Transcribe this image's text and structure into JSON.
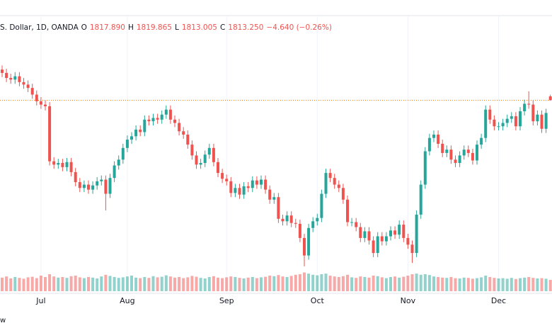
{
  "chart_data": {
    "type": "candlestick",
    "header": {
      "symbol": "S. Dollar, 1D, OANDA",
      "open_key": "O",
      "open": "1817.890",
      "high_key": "H",
      "high": "1819.865",
      "low_key": "L",
      "low": "1813.005",
      "close_key": "C",
      "close": "1813.250",
      "change": "−4.640 (−0.26%)"
    },
    "footer": "w",
    "up_color": "#26a69a",
    "down_color": "#ef5350",
    "price_line_color": "#f57c00",
    "ylim": [
      1602,
      1891
    ],
    "volume_lim": [
      0,
      100
    ],
    "xlim": [
      -0.5,
      127.5
    ],
    "xticks": [
      {
        "value": 9,
        "label": "Jul"
      },
      {
        "value": 29,
        "label": "Aug"
      },
      {
        "value": 52,
        "label": "Sep"
      },
      {
        "value": 73,
        "label": "Oct"
      },
      {
        "value": 94,
        "label": "Nov"
      },
      {
        "value": 115,
        "label": "Dec"
      }
    ],
    "open": [
      1850,
      1846,
      1840,
      1838,
      1842,
      1835,
      1832,
      1828,
      1820,
      1812,
      1808,
      1806,
      1740,
      1736,
      1738,
      1733,
      1739,
      1727,
      1715,
      1708,
      1712,
      1706,
      1711,
      1716,
      1718,
      1701,
      1720,
      1735,
      1742,
      1756,
      1766,
      1770,
      1778,
      1775,
      1790,
      1788,
      1792,
      1790,
      1796,
      1802,
      1790,
      1786,
      1776,
      1772,
      1760,
      1747,
      1736,
      1738,
      1748,
      1756,
      1739,
      1726,
      1719,
      1716,
      1702,
      1708,
      1700,
      1710,
      1708,
      1717,
      1712,
      1718,
      1706,
      1694,
      1697,
      1671,
      1668,
      1675,
      1666,
      1665,
      1648,
      1627,
      1660,
      1668,
      1672,
      1701,
      1726,
      1720,
      1712,
      1708,
      1694,
      1667,
      1667,
      1661,
      1648,
      1656,
      1645,
      1630,
      1650,
      1644,
      1650,
      1657,
      1652,
      1664,
      1648,
      1640,
      1630,
      1676,
      1712,
      1752,
      1768,
      1772,
      1761,
      1750,
      1754,
      1742,
      1738,
      1747,
      1754,
      1750,
      1741,
      1760,
      1768,
      1802,
      1790,
      1782,
      1782,
      1786,
      1791,
      1794,
      1782,
      1800,
      1809,
      1808,
      1788,
      1796,
      1779,
      1817.89
    ],
    "high": [
      1855,
      1851,
      1845,
      1847,
      1847,
      1840,
      1837,
      1833,
      1825,
      1817,
      1813,
      1811,
      1745,
      1743,
      1743,
      1744,
      1744,
      1732,
      1720,
      1717,
      1717,
      1716,
      1721,
      1723,
      1723,
      1725,
      1740,
      1747,
      1761,
      1771,
      1775,
      1783,
      1783,
      1795,
      1795,
      1797,
      1797,
      1801,
      1807,
      1807,
      1795,
      1791,
      1781,
      1777,
      1765,
      1752,
      1743,
      1753,
      1761,
      1761,
      1744,
      1731,
      1724,
      1721,
      1713,
      1713,
      1715,
      1715,
      1722,
      1722,
      1723,
      1723,
      1711,
      1702,
      1702,
      1676,
      1680,
      1680,
      1671,
      1670,
      1653,
      1665,
      1673,
      1677,
      1706,
      1731,
      1731,
      1725,
      1717,
      1713,
      1699,
      1672,
      1672,
      1666,
      1661,
      1661,
      1650,
      1655,
      1655,
      1655,
      1662,
      1662,
      1669,
      1669,
      1653,
      1645,
      1681,
      1717,
      1757,
      1773,
      1777,
      1777,
      1766,
      1759,
      1759,
      1747,
      1752,
      1759,
      1759,
      1755,
      1765,
      1773,
      1807,
      1807,
      1795,
      1787,
      1791,
      1796,
      1799,
      1799,
      1805,
      1814,
      1824,
      1813,
      1801,
      1801,
      1803,
      1819.865
    ],
    "low": [
      1841,
      1835,
      1833,
      1833,
      1830,
      1827,
      1823,
      1815,
      1807,
      1803,
      1801,
      1735,
      1731,
      1731,
      1728,
      1728,
      1722,
      1710,
      1703,
      1703,
      1701,
      1701,
      1706,
      1711,
      1681,
      1696,
      1715,
      1730,
      1737,
      1751,
      1761,
      1765,
      1770,
      1770,
      1783,
      1783,
      1785,
      1785,
      1791,
      1785,
      1781,
      1771,
      1767,
      1755,
      1742,
      1731,
      1731,
      1733,
      1743,
      1734,
      1721,
      1714,
      1711,
      1697,
      1697,
      1695,
      1695,
      1703,
      1703,
      1707,
      1707,
      1701,
      1689,
      1689,
      1666,
      1663,
      1663,
      1661,
      1660,
      1643,
      1614,
      1622,
      1655,
      1663,
      1667,
      1696,
      1715,
      1707,
      1703,
      1689,
      1662,
      1662,
      1656,
      1643,
      1643,
      1640,
      1625,
      1625,
      1639,
      1639,
      1645,
      1647,
      1647,
      1643,
      1635,
      1618,
      1625,
      1671,
      1707,
      1747,
      1763,
      1756,
      1745,
      1745,
      1737,
      1733,
      1733,
      1742,
      1745,
      1736,
      1736,
      1755,
      1763,
      1785,
      1777,
      1777,
      1777,
      1781,
      1786,
      1777,
      1777,
      1795,
      1803,
      1783,
      1783,
      1774,
      1774,
      1813.005
    ],
    "close": [
      1846,
      1840,
      1838,
      1842,
      1835,
      1832,
      1828,
      1820,
      1812,
      1808,
      1806,
      1740,
      1736,
      1738,
      1733,
      1739,
      1727,
      1715,
      1708,
      1712,
      1706,
      1711,
      1716,
      1718,
      1701,
      1720,
      1735,
      1742,
      1756,
      1766,
      1770,
      1778,
      1775,
      1790,
      1788,
      1792,
      1790,
      1796,
      1802,
      1790,
      1786,
      1776,
      1772,
      1760,
      1747,
      1736,
      1738,
      1748,
      1756,
      1739,
      1726,
      1719,
      1716,
      1702,
      1708,
      1700,
      1710,
      1708,
      1717,
      1712,
      1718,
      1706,
      1694,
      1697,
      1671,
      1668,
      1675,
      1666,
      1665,
      1648,
      1627,
      1660,
      1668,
      1672,
      1701,
      1726,
      1720,
      1712,
      1708,
      1694,
      1667,
      1667,
      1661,
      1648,
      1656,
      1645,
      1630,
      1650,
      1644,
      1650,
      1657,
      1652,
      1664,
      1648,
      1640,
      1630,
      1676,
      1712,
      1752,
      1768,
      1772,
      1761,
      1750,
      1754,
      1742,
      1738,
      1747,
      1754,
      1750,
      1741,
      1760,
      1768,
      1802,
      1790,
      1782,
      1782,
      1786,
      1791,
      1794,
      1782,
      1800,
      1809,
      1808,
      1788,
      1796,
      1779,
      1798,
      1813.25
    ],
    "volume": [
      48,
      52,
      45,
      50,
      47,
      44,
      49,
      51,
      46,
      55,
      50,
      60,
      52,
      48,
      50,
      47,
      53,
      55,
      49,
      46,
      50,
      48,
      45,
      52,
      58,
      54,
      50,
      47,
      49,
      52,
      55,
      48,
      46,
      50,
      47,
      53,
      49,
      51,
      56,
      52,
      48,
      50,
      46,
      49,
      54,
      51,
      47,
      45,
      50,
      53,
      48,
      46,
      49,
      52,
      50,
      47,
      45,
      48,
      50,
      46,
      49,
      51,
      55,
      53,
      57,
      52,
      50,
      54,
      58,
      60,
      66,
      62,
      58,
      56,
      60,
      62,
      55,
      52,
      50,
      53,
      58,
      49,
      47,
      52,
      50,
      48,
      55,
      53,
      49,
      46,
      50,
      52,
      48,
      51,
      55,
      60,
      62,
      58,
      60,
      57,
      52,
      50,
      48,
      47,
      50,
      46,
      45,
      48,
      47,
      44,
      46,
      49,
      55,
      50,
      47,
      45,
      46,
      44,
      47,
      43,
      46,
      48,
      50,
      47,
      45,
      46,
      44,
      40
    ]
  }
}
